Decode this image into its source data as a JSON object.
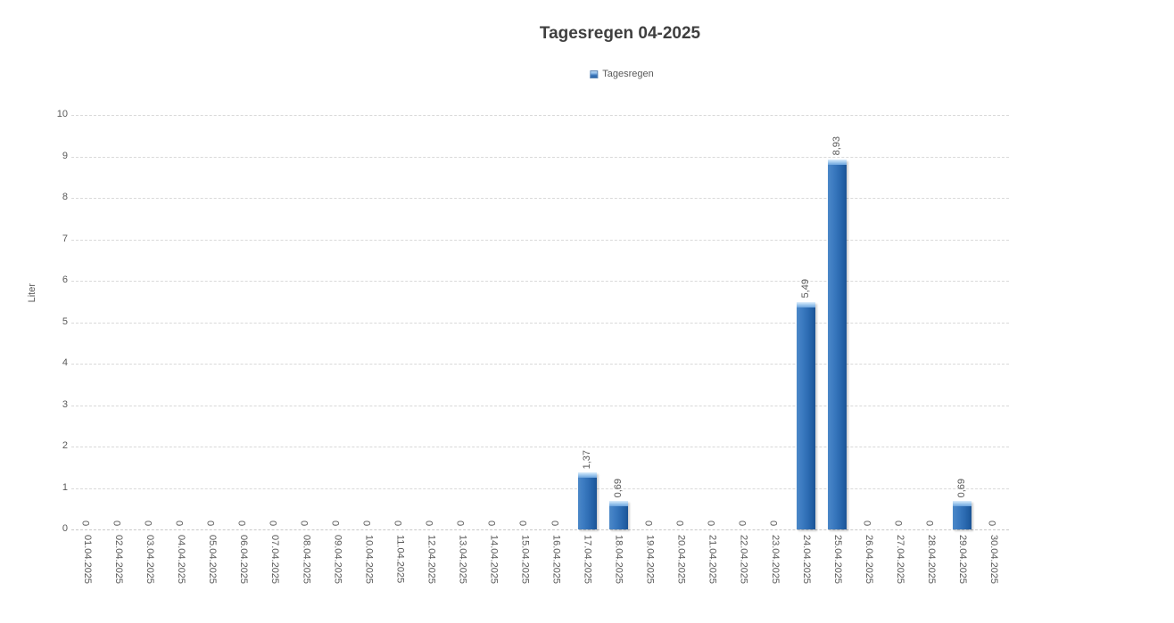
{
  "chart_data": {
    "type": "bar",
    "title": "Tagesregen 04-2025",
    "ylabel": "Liter",
    "ylim": [
      0,
      10
    ],
    "ytick_step": 1,
    "grid": "horizontal, dashed light gray",
    "legend": {
      "position": "top-center",
      "entries": [
        "Tagesregen"
      ]
    },
    "decimal_separator": ",",
    "categories": [
      "01.04.2025",
      "02.04.2025",
      "03.04.2025",
      "04.04.2025",
      "05.04.2025",
      "06.04.2025",
      "07.04.2025",
      "08.04.2025",
      "09.04.2025",
      "10.04.2025",
      "11.04.2025",
      "12.04.2025",
      "13.04.2025",
      "14.04.2025",
      "15.04.2025",
      "16.04.2025",
      "17.04.2025",
      "18.04.2025",
      "19.04.2025",
      "20.04.2025",
      "21.04.2025",
      "22.04.2025",
      "23.04.2025",
      "24.04.2025",
      "25.04.2025",
      "26.04.2025",
      "27.04.2025",
      "28.04.2025",
      "29.04.2025",
      "30.04.2025"
    ],
    "series": [
      {
        "name": "Tagesregen",
        "values": [
          0,
          0,
          0,
          0,
          0,
          0,
          0,
          0,
          0,
          0,
          0,
          0,
          0,
          0,
          0,
          0,
          1.37,
          0.69,
          0,
          0,
          0,
          0,
          0,
          5.49,
          8.93,
          0,
          0,
          0,
          0.69,
          0
        ],
        "value_labels": [
          "0",
          "0",
          "0",
          "0",
          "0",
          "0",
          "0",
          "0",
          "0",
          "0",
          "0",
          "0",
          "0",
          "0",
          "0",
          "0",
          "1,37",
          "0,69",
          "0",
          "0",
          "0",
          "0",
          "0",
          "5,49",
          "8,93",
          "0",
          "0",
          "0",
          "0,69",
          "0"
        ]
      }
    ],
    "colors": {
      "bar_main": "#2d6cb3",
      "bar_cap": "#a6cdf0",
      "gridline": "#d9d9d9",
      "label_text": "#595959",
      "title_text": "#3f3f3f",
      "background": "#ffffff"
    }
  }
}
